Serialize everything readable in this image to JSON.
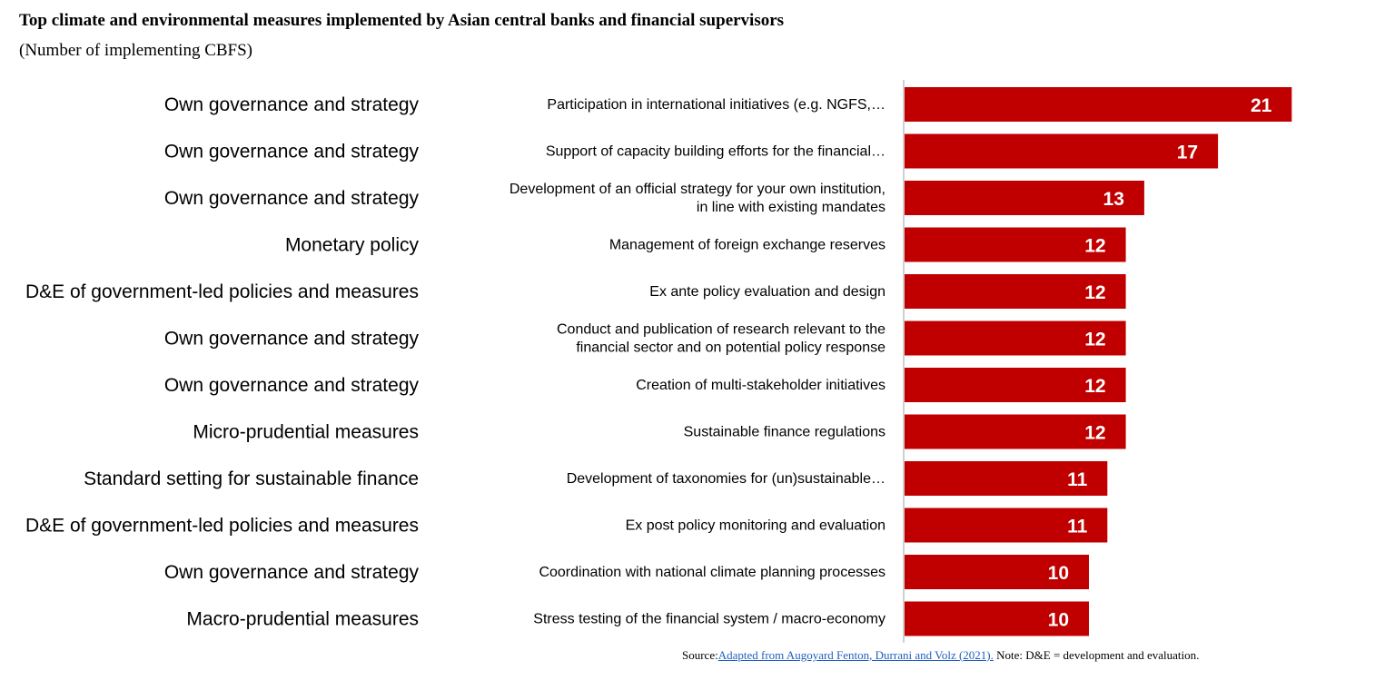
{
  "chart_data": {
    "type": "bar",
    "orientation": "horizontal",
    "title": "Top climate and environmental measures implemented by Asian central banks and financial supervisors",
    "subtitle": "(Number of implementing CBFS)",
    "xlabel": "",
    "ylabel": "",
    "xlim": [
      0,
      21
    ],
    "grid": false,
    "legend": null,
    "bar_color": "#c00000",
    "categories": [
      {
        "group": "Own governance and strategy",
        "measure": [
          "Participation in international initiatives (e.g. NGFS,…"
        ],
        "value": 21
      },
      {
        "group": "Own governance and strategy",
        "measure": [
          "Support of capacity building  efforts for the financial…"
        ],
        "value": 17
      },
      {
        "group": "Own governance and strategy",
        "measure": [
          "Development of an official strategy for your own institution,",
          "in line with existing mandates"
        ],
        "value": 13
      },
      {
        "group": "Monetary policy",
        "measure": [
          "Management of foreign exchange reserves"
        ],
        "value": 12
      },
      {
        "group": "D&E of government-led policies and measures",
        "measure": [
          "Ex ante policy evaluation and design"
        ],
        "value": 12
      },
      {
        "group": "Own governance and strategy",
        "measure": [
          "Conduct and publication of research relevant to the",
          "financial sector and on potential policy response"
        ],
        "value": 12
      },
      {
        "group": "Own governance and strategy",
        "measure": [
          "Creation of multi-stakeholder initiatives"
        ],
        "value": 12
      },
      {
        "group": "Micro-prudential measures",
        "measure": [
          "Sustainable finance regulations"
        ],
        "value": 12
      },
      {
        "group": "Standard setting for sustainable finance",
        "measure": [
          "Development of taxonomies for (un)sustainable…"
        ],
        "value": 11
      },
      {
        "group": "D&E of government-led policies and measures",
        "measure": [
          "Ex post policy monitoring and evaluation"
        ],
        "value": 11
      },
      {
        "group": "Own governance and strategy",
        "measure": [
          "Coordination with national climate planning processes"
        ],
        "value": 10
      },
      {
        "group": "Macro-prudential measures",
        "measure": [
          "Stress testing of the financial system / macro-economy"
        ],
        "value": 10
      }
    ]
  },
  "footer": {
    "source_prefix": "Source:",
    "source_link": "Adapted from Augoyard Fenton, Durrani and Volz (2021).",
    "note": " Note: D&E = development and evaluation."
  }
}
